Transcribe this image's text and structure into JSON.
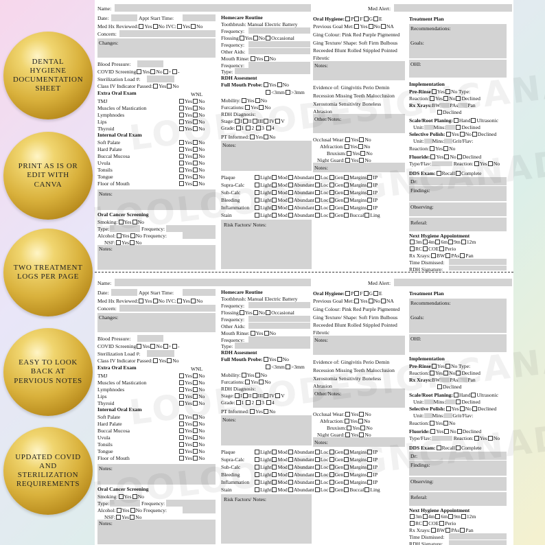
{
  "badges": [
    "DENTAL HYGIENE DOCUMENTATION SHEET",
    "PRINT AS IS OR EDIT WITH CANVA",
    "TWO TREATMENT LOGS PER PAGE",
    "EASY TO LOOK BACK AT PERVIOUS NOTES",
    "UPDATED COVID AND STERILIZATION REQUIREMENTS"
  ],
  "watermark": "LOOLOODESIGNCANADA",
  "header": {
    "name": "Name:",
    "med_alert": "Med Alert:"
  },
  "col1": {
    "date": "Date:",
    "appt": "Appt Start Time:",
    "medhx": "Med Hx Reviewed:",
    "yes": "Yes",
    "no": "No",
    "ivc": "IVC:",
    "concern": "Concern:",
    "changes": "Changes:",
    "bp": "Blood Pressure:",
    "covid": "COVID Screening",
    "plus": "+",
    "minus": "-",
    "steril": "Sterilization Load #:",
    "classiv": "Class IV Indicator Passed:",
    "eoe": "Extra Oral Exam",
    "wnl": "WNL",
    "eoe_items": [
      "TMJ",
      "Muscles of Mastication",
      "Lymphnodes",
      "Lips",
      "Thyroid"
    ],
    "ioe": "Internal Oral Exam",
    "ioe_items": [
      "Soft Palate",
      "Hard Palate",
      "Buccal Mucosa",
      "Uvula",
      "Tonsils",
      "Tongue",
      "Floor of Mouth"
    ],
    "notes": "Notes:",
    "ocs": "Oral Cancer Screening",
    "smoking": "Smoking:",
    "type": "Type:",
    "frequency": "Frequency:",
    "alcohol": "Alcohol:",
    "nofreq": "No Frequency:",
    "nsf": "NSF:"
  },
  "col2": {
    "homecare": "Homecare Routine",
    "toothbrush": "Toothbrush: Manual  Electric  Battery",
    "frequency": "Frequency:",
    "flossing": "Flossing",
    "occasional": "Occasional",
    "other_aids": "Other Aids:",
    "mouth_rinse": "Mouth Rinse:",
    "type": "Type:",
    "rdh": "RDH Assesment",
    "fmp": "Full Mouth Probe:",
    "lt3": "<3mm",
    ">3": ">3mm",
    "mobility": "Mobility:",
    "furcations": "Furcations:",
    "diagnosis": "RDH Diagnosis:",
    "stage": "Stage:",
    "stages": [
      "I",
      "II",
      "III",
      "IV",
      "V"
    ],
    "grade": "Grade:",
    "grades": [
      "1",
      "2",
      "3",
      "4"
    ],
    "pt_informed": "PT Informed:",
    "notes": "Notes:",
    "rows": [
      "Plaque",
      "Supra-Calc",
      "Sub-Calc",
      "Bleeding",
      "Inflammation",
      "Stain"
    ],
    "sev": [
      "Light",
      "Mod",
      "Abundant"
    ],
    "loc": [
      "Loc",
      "Gen",
      "Margins",
      "IP"
    ],
    "stainlast": [
      "Loc",
      "Gen",
      "Buccal",
      "Ling"
    ],
    "risk": "Risk Factors/ Notes:"
  },
  "col3": {
    "oral_hygiene": "Oral Hygiene:",
    "ohs": [
      "P",
      "F",
      "G",
      "E"
    ],
    "prev_goal": "Previous Goal Met:",
    "na": "NA",
    "ging_colour": "Ging Colour: Pink Red Purple Pigmented",
    "ging_texture": "Ging Texture/ Shape:  Soft Firm Bulbous",
    "receded": "Receeded Blunt Rolled Stippled Pointed",
    "fibrotic": "Fibrotic",
    "notes": "Notes:",
    "evidence": "Evidence of: Gingivitis Perio Demin",
    "recession": "Recession Missing Teeth Malocclusion",
    "xero": "Xerostomia Sensitivity Boneless",
    "abrasion": "Abrasion",
    "other": "Other/Notes:",
    "occ_wear": "Occlusal Wear:",
    "abfraction": "Abfraction:",
    "bruxism": "Bruxism:",
    "night_guard": "Night Guard:"
  },
  "col4": {
    "tp": "Treatment Plan",
    "rec": "Recommendations:",
    "goals": "Goals:",
    "ohi": "OHI:",
    "impl": "Implementation",
    "prerinse": "Pre-Rinse",
    "notype": "No Type:",
    "reaction": "Reaction:",
    "declined": "Declined",
    "rxxrays": "Rx Xrays:",
    "bw": "BW",
    "pas": "PAs",
    "pan": "Pan",
    "srp": "Scale/Root Planing:",
    "hand": "Hand",
    "ultra": "Ultrasonic",
    "unit": "Unit:",
    "mins": "Mins:",
    "sp": "Selective Polish:",
    "grit": "Grit/Flav:",
    "fluoride": "Fluoride:",
    "typeflav": "Type/Flav:",
    "dds": "DDS Exam:",
    "recall": "Recall",
    "complete": "Complete",
    "dr": "Dr:",
    "findings": "Findings:",
    "observing": "Observing:",
    "referal": "Referal:",
    "nha": "Next Hygiene Appointment",
    "months": [
      "3m",
      "4m",
      "6m",
      "9m",
      "12m"
    ],
    "rc": "RC",
    "coe": "COE",
    "perio": "Perio",
    "dismissed": "Time Dismissed:",
    "rdhsig": "RDH Signature:"
  }
}
